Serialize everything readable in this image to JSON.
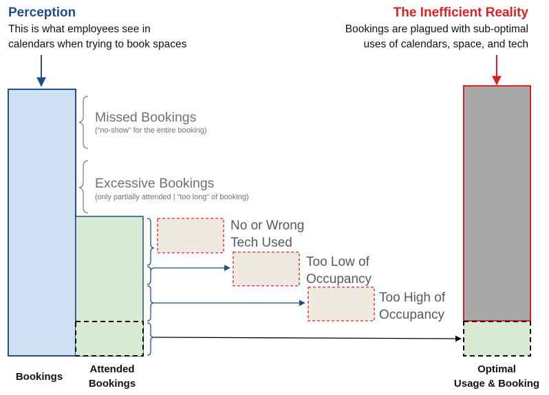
{
  "perception": {
    "title": "Perception",
    "line1": "This is what employees see in",
    "line2": "calendars when trying to book spaces"
  },
  "reality": {
    "title": "The Inefficient Reality",
    "line1": "Bookings are plagued with sub-optimal",
    "line2": "uses of calendars, space, and tech"
  },
  "brackets": {
    "missed": {
      "label": "Missed Bookings",
      "sub": "(“no-show” for the entire booking)"
    },
    "excessive": {
      "label": "Excessive Bookings",
      "sub": "(only partially attended | “too long” of booking)"
    }
  },
  "issues": {
    "tech": {
      "line1": "No or Wrong",
      "line2": "Tech Used"
    },
    "low": {
      "line1": "Too Low of",
      "line2": "Occupancy"
    },
    "high": {
      "line1": "Too High of",
      "line2": "Occupancy"
    }
  },
  "bars": {
    "bookings": {
      "label": "Bookings"
    },
    "attended": {
      "line1": "Attended",
      "line2": "Bookings"
    },
    "optimal": {
      "line1": "Optimal",
      "line2": "Usage & Booking"
    }
  },
  "colors": {
    "perception_blue": "#1f4e8c",
    "bookings_fill": "#cfe0f3",
    "attended_fill": "#d9ead3",
    "reality_red": "#e02020",
    "reality_fill": "#a9a9a9",
    "issue_fill": "#eeeae0",
    "muted_text": "#707070",
    "issue_text": "#595959"
  }
}
